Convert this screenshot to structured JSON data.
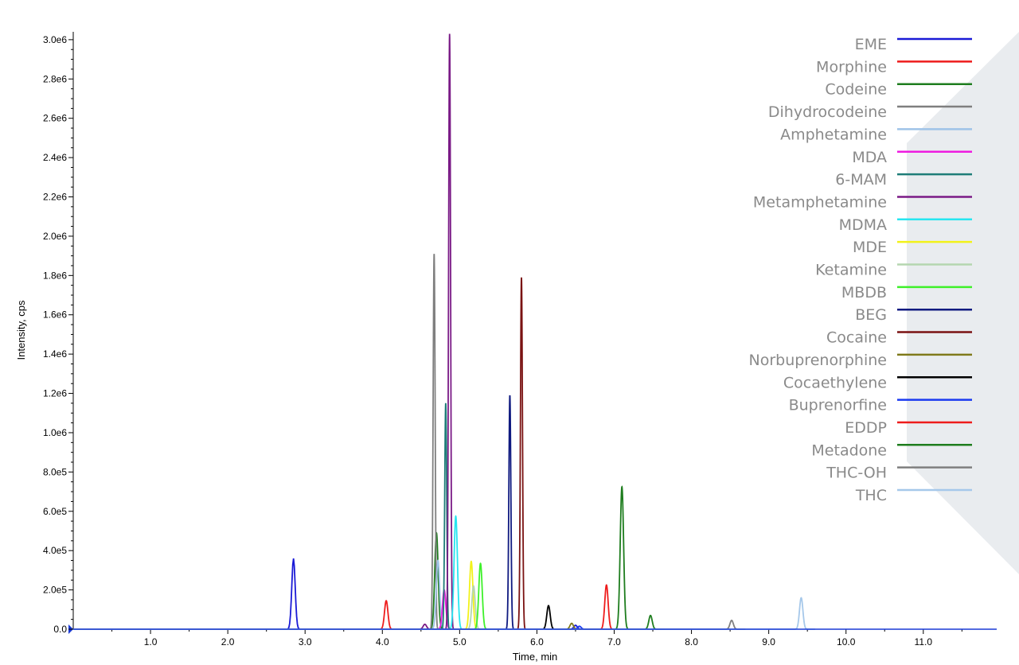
{
  "chart_data": {
    "type": "line",
    "title": "",
    "xlabel": "Time, min",
    "ylabel": "Intensity, cps",
    "xlim": [
      0.0,
      12.0
    ],
    "ylim": [
      0,
      3000000
    ],
    "x_ticks": [
      1.0,
      2.0,
      3.0,
      4.0,
      5.0,
      6.0,
      7.0,
      8.0,
      9.0,
      10.0,
      11.0
    ],
    "x_tick_labels": [
      "1.0",
      "2.0",
      "3.0",
      "4.0",
      "5.0",
      "6.0",
      "7.0",
      "8.0",
      "9.0",
      "10.0",
      "11.0"
    ],
    "y_ticks": [
      0,
      200000,
      400000,
      600000,
      800000,
      1000000,
      1200000,
      1400000,
      1600000,
      1800000,
      2000000,
      2200000,
      2400000,
      2600000,
      2800000,
      3000000
    ],
    "y_tick_labels": [
      "0.0",
      "2.0e5",
      "4.0e5",
      "6.0e5",
      "8.0e5",
      "1.0e6",
      "1.2e6",
      "1.4e6",
      "1.6e6",
      "1.8e6",
      "2.0e6",
      "2.2e6",
      "2.4e6",
      "2.6e6",
      "2.8e6",
      "3.0e6"
    ],
    "legend_position": "right",
    "grid": false,
    "series": [
      {
        "name": "EME",
        "color": "#1a1ad6",
        "peaks": [
          {
            "rt": 2.85,
            "height": 360000
          },
          {
            "rt": 6.5,
            "height": 20000
          }
        ]
      },
      {
        "name": "Morphine",
        "color": "#ee1c1c",
        "peaks": [
          {
            "rt": 4.05,
            "height": 145000
          }
        ]
      },
      {
        "name": "Codeine",
        "color": "#1e7d1e",
        "peaks": [
          {
            "rt": 4.7,
            "height": 490000
          }
        ]
      },
      {
        "name": "Dihydrocodeine",
        "color": "#7f7f7f",
        "peaks": [
          {
            "rt": 4.67,
            "height": 1910000
          }
        ]
      },
      {
        "name": "Amphetamine",
        "color": "#9fc3e8",
        "peaks": [
          {
            "rt": 4.72,
            "height": 350000
          }
        ]
      },
      {
        "name": "MDA",
        "color": "#ee1ce0",
        "peaks": [
          {
            "rt": 4.8,
            "height": 200000
          }
        ]
      },
      {
        "name": "6-MAM",
        "color": "#1e7d78",
        "peaks": [
          {
            "rt": 4.82,
            "height": 1150000
          }
        ]
      },
      {
        "name": "Metamphetamine",
        "color": "#7a1a86",
        "peaks": [
          {
            "rt": 4.87,
            "height": 3030000
          },
          {
            "rt": 4.55,
            "height": 25000
          }
        ]
      },
      {
        "name": "MDMA",
        "color": "#28e6f0",
        "peaks": [
          {
            "rt": 4.95,
            "height": 575000
          }
        ]
      },
      {
        "name": "MDE",
        "color": "#f2f21a",
        "peaks": [
          {
            "rt": 5.15,
            "height": 345000
          }
        ]
      },
      {
        "name": "Ketamine",
        "color": "#b5d6b0",
        "peaks": [
          {
            "rt": 5.18,
            "height": 220000
          }
        ]
      },
      {
        "name": "MBDB",
        "color": "#3ef02a",
        "peaks": [
          {
            "rt": 5.27,
            "height": 335000
          }
        ]
      },
      {
        "name": "BEG",
        "color": "#0f1a80",
        "peaks": [
          {
            "rt": 5.65,
            "height": 1190000
          }
        ]
      },
      {
        "name": "Cocaine",
        "color": "#7a1212",
        "peaks": [
          {
            "rt": 5.8,
            "height": 1790000
          }
        ]
      },
      {
        "name": "Norbuprenorphine",
        "color": "#7f7a1a",
        "peaks": [
          {
            "rt": 6.45,
            "height": 30000
          }
        ]
      },
      {
        "name": "Cocaethylene",
        "color": "#000000",
        "peaks": [
          {
            "rt": 6.15,
            "height": 120000
          }
        ]
      },
      {
        "name": "Buprenorfine",
        "color": "#1a3af0",
        "peaks": [
          {
            "rt": 6.55,
            "height": 15000
          }
        ]
      },
      {
        "name": "EDDP",
        "color": "#ee1c1c",
        "peaks": [
          {
            "rt": 6.9,
            "height": 225000
          }
        ]
      },
      {
        "name": "Metadone",
        "color": "#1e7d1e",
        "peaks": [
          {
            "rt": 7.1,
            "height": 725000
          },
          {
            "rt": 7.47,
            "height": 70000
          }
        ]
      },
      {
        "name": "THC-OH",
        "color": "#7f7f7f",
        "peaks": [
          {
            "rt": 8.52,
            "height": 45000
          }
        ]
      },
      {
        "name": "THC",
        "color": "#a6c8ea",
        "peaks": [
          {
            "rt": 9.42,
            "height": 160000
          }
        ]
      }
    ]
  }
}
